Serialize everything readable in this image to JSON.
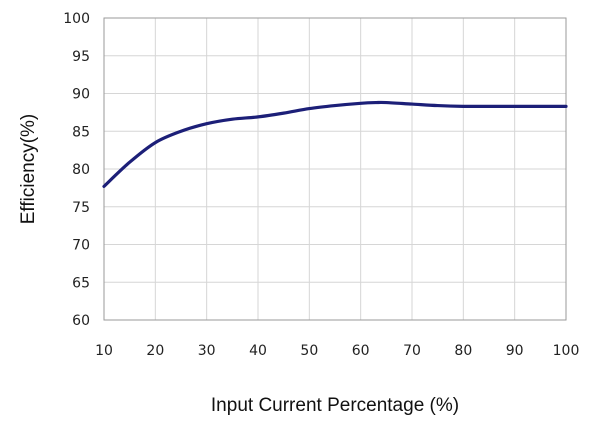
{
  "chart_data": {
    "type": "line",
    "title": "",
    "xlabel": "Input Current Percentage (%)",
    "ylabel": "Efficiency(%)",
    "xlim": [
      10,
      100
    ],
    "ylim": [
      60,
      100
    ],
    "xticks": [
      10,
      20,
      30,
      40,
      50,
      60,
      70,
      80,
      90,
      100
    ],
    "yticks": [
      60,
      65,
      70,
      75,
      80,
      85,
      90,
      95,
      100
    ],
    "grid": true,
    "legend": "none",
    "series": [
      {
        "color": "#1c1f78",
        "x": [
          10,
          15,
          20,
          25,
          30,
          35,
          40,
          45,
          50,
          55,
          60,
          63,
          65,
          70,
          75,
          80,
          85,
          90,
          95,
          100
        ],
        "y": [
          77.7,
          80.9,
          83.5,
          85.0,
          86.0,
          86.6,
          86.9,
          87.4,
          88.0,
          88.4,
          88.7,
          88.8,
          88.8,
          88.6,
          88.4,
          88.3,
          88.3,
          88.3,
          88.3,
          88.3
        ]
      }
    ]
  }
}
